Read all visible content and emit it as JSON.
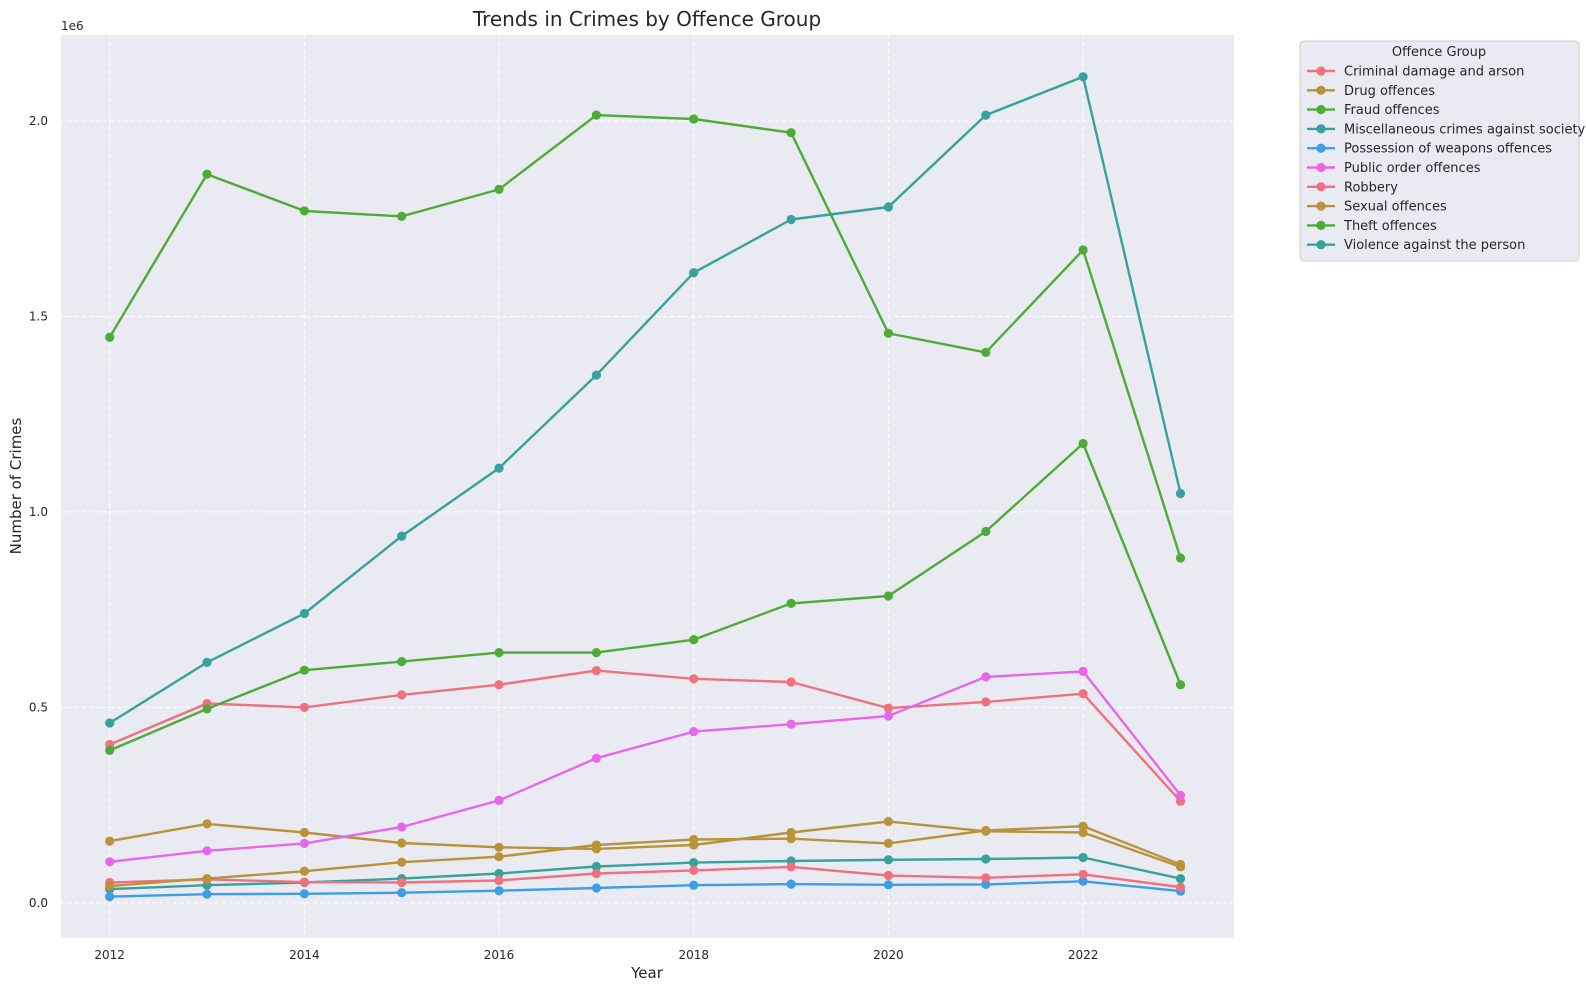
{
  "chart_data": {
    "type": "line",
    "title": "Trends in Crimes by Offence Group",
    "xlabel": "Year",
    "ylabel": "Number of Crimes",
    "y_offset_label": "1e6",
    "x": [
      2012,
      2013,
      2014,
      2015,
      2016,
      2017,
      2018,
      2019,
      2020,
      2021,
      2022,
      2023
    ],
    "xlim": [
      2011.5,
      2023.55
    ],
    "ylim": [
      -90000,
      2220000
    ],
    "xticks": [
      2012,
      2014,
      2016,
      2018,
      2020,
      2022
    ],
    "xtick_labels": [
      "2012",
      "2014",
      "2016",
      "2018",
      "2020",
      "2022"
    ],
    "yticks": [
      0,
      500000,
      1000000,
      1500000,
      2000000
    ],
    "ytick_labels": [
      "0.0",
      "0.5",
      "1.0",
      "1.5",
      "2.0"
    ],
    "grid": true,
    "legend": {
      "title": "Offence Group",
      "placement": "outside-top-right"
    },
    "series": [
      {
        "name": "Criminal damage and arson",
        "color": "#f0707e",
        "values": [
          405000,
          510000,
          500000,
          532000,
          558000,
          594000,
          573000,
          565000,
          498000,
          514000,
          535000,
          260000
        ]
      },
      {
        "name": "Drug offences",
        "color": "#b8933a",
        "values": [
          158000,
          202000,
          180000,
          153000,
          142000,
          138000,
          148000,
          180000,
          208000,
          183000,
          180000,
          92000
        ]
      },
      {
        "name": "Fraud offences",
        "color": "#4eac36",
        "values": [
          390000,
          496000,
          595000,
          617000,
          640000,
          640000,
          673000,
          766000,
          785000,
          950000,
          1175000,
          558000
        ]
      },
      {
        "name": "Miscellaneous crimes against society",
        "color": "#35a29c",
        "values": [
          35000,
          45000,
          52000,
          62000,
          75000,
          93000,
          103000,
          107000,
          110000,
          112000,
          116000,
          62000
        ]
      },
      {
        "name": "Possession of weapons offences",
        "color": "#3c9ee6",
        "values": [
          16000,
          22000,
          23000,
          26000,
          31000,
          38000,
          45000,
          48000,
          46000,
          47000,
          55000,
          30000
        ]
      },
      {
        "name": "Public order offences",
        "color": "#e766ea",
        "values": [
          105000,
          133000,
          152000,
          194000,
          262000,
          370000,
          438000,
          457000,
          478000,
          578000,
          592000,
          275000
        ]
      },
      {
        "name": "Robbery",
        "color": "#f0707e",
        "values": [
          52000,
          60000,
          53000,
          52000,
          57000,
          75000,
          83000,
          92000,
          70000,
          64000,
          73000,
          40000
        ]
      },
      {
        "name": "Sexual offences",
        "color": "#b8933a",
        "values": [
          43000,
          62000,
          81000,
          104000,
          118000,
          148000,
          162000,
          164000,
          152000,
          185000,
          196000,
          98000
        ]
      },
      {
        "name": "Theft offences",
        "color": "#4eac36",
        "values": [
          1447000,
          1864000,
          1770000,
          1756000,
          1825000,
          2015000,
          2005000,
          1970000,
          1457000,
          1408000,
          1670000,
          882000
        ]
      },
      {
        "name": "Violence against the person",
        "color": "#35a29c",
        "values": [
          460000,
          615000,
          740000,
          938000,
          1112000,
          1350000,
          1612000,
          1748000,
          1780000,
          2015000,
          2113000,
          1047000
        ]
      }
    ]
  }
}
